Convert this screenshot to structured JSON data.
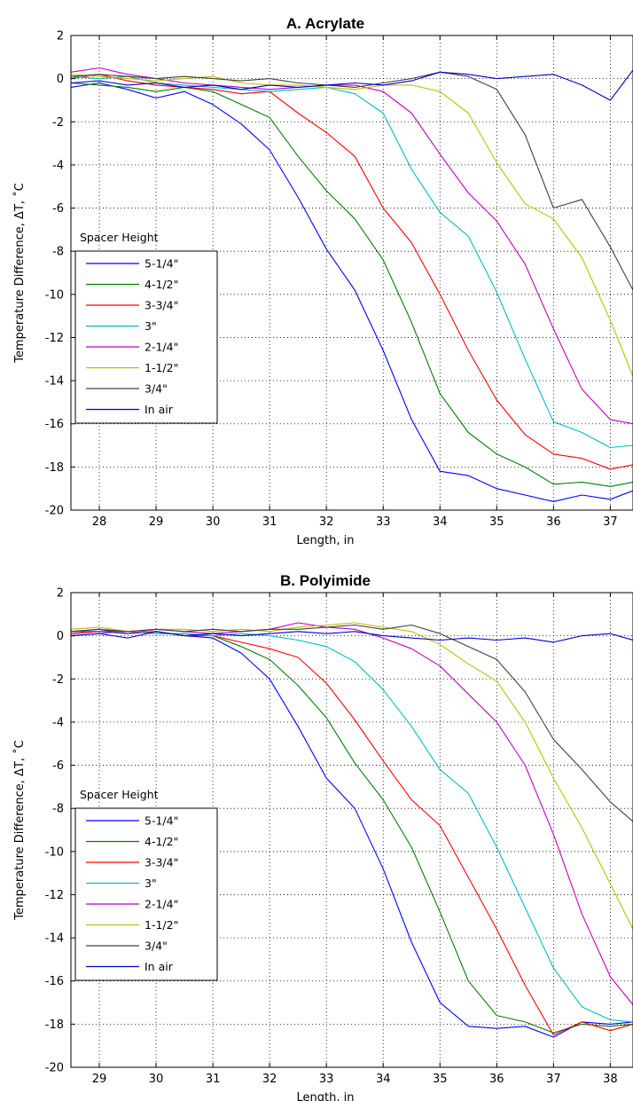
{
  "chart_data": [
    {
      "type": "line",
      "title": "A. Acrylate",
      "xlabel": "Length, in",
      "ylabel": "Temperature Difference, ΔT, ˚C",
      "xlim": [
        27.5,
        37.4
      ],
      "ylim": [
        -20,
        2
      ],
      "xticks": [
        28,
        29,
        30,
        31,
        32,
        33,
        34,
        35,
        36,
        37
      ],
      "yticks": [
        2,
        0,
        -2,
        -4,
        -6,
        -8,
        -10,
        -12,
        -14,
        -16,
        -18,
        -20
      ],
      "grid": true,
      "legend": {
        "title": "Spacer Height",
        "placement": "lower-left"
      },
      "series": [
        {
          "name": "5-1/4\"",
          "color": "#0000ff",
          "x": [
            27.5,
            28.0,
            28.5,
            29.0,
            29.5,
            30.0,
            30.5,
            31.0,
            31.5,
            32.0,
            32.5,
            33.0,
            33.5,
            34.0,
            34.5,
            35.0,
            35.5,
            36.0,
            36.5,
            37.0,
            37.4
          ],
          "y": [
            -0.4,
            -0.2,
            -0.5,
            -0.9,
            -0.6,
            -1.2,
            -2.1,
            -3.3,
            -5.5,
            -7.9,
            -9.8,
            -12.6,
            -15.8,
            -18.2,
            -18.4,
            -19.0,
            -19.3,
            -19.6,
            -19.3,
            -19.5,
            -19.1
          ]
        },
        {
          "name": "4-1/2\"",
          "color": "#008000",
          "x": [
            27.5,
            28.0,
            28.5,
            29.0,
            29.5,
            30.0,
            30.5,
            31.0,
            31.5,
            32.0,
            32.5,
            33.0,
            33.5,
            34.0,
            34.5,
            35.0,
            35.5,
            36.0,
            36.5,
            37.0,
            37.4
          ],
          "y": [
            -0.2,
            -0.3,
            -0.4,
            -0.6,
            -0.4,
            -0.6,
            -1.2,
            -1.8,
            -3.6,
            -5.2,
            -6.5,
            -8.4,
            -11.3,
            -14.6,
            -16.4,
            -17.4,
            -18.0,
            -18.8,
            -18.7,
            -18.9,
            -18.7
          ]
        },
        {
          "name": "3-3/4\"",
          "color": "#ff0000",
          "x": [
            27.5,
            28.0,
            28.5,
            29.0,
            29.5,
            30.0,
            30.5,
            31.0,
            31.5,
            32.0,
            32.5,
            33.0,
            33.5,
            34.0,
            34.5,
            35.0,
            35.5,
            36.0,
            36.5,
            37.0,
            37.4
          ],
          "y": [
            0.0,
            0.2,
            -0.1,
            -0.3,
            -0.4,
            -0.5,
            -0.7,
            -0.6,
            -1.6,
            -2.5,
            -3.6,
            -6.0,
            -7.6,
            -10.0,
            -12.6,
            -14.9,
            -16.5,
            -17.4,
            -17.6,
            -18.1,
            -17.9
          ]
        },
        {
          "name": "3\"",
          "color": "#00bfbf",
          "x": [
            27.5,
            28.0,
            28.5,
            29.0,
            29.5,
            30.0,
            30.5,
            31.0,
            31.5,
            32.0,
            32.5,
            33.0,
            33.5,
            34.0,
            34.5,
            35.0,
            35.5,
            36.0,
            36.5,
            37.0,
            37.4
          ],
          "y": [
            0.1,
            0.0,
            0.1,
            -0.2,
            -0.3,
            -0.4,
            -0.5,
            -0.6,
            -0.5,
            -0.4,
            -0.7,
            -1.6,
            -4.2,
            -6.2,
            -7.3,
            -9.9,
            -13.0,
            -15.9,
            -16.4,
            -17.1,
            -17.0
          ]
        },
        {
          "name": "2-1/4\"",
          "color": "#bf00bf",
          "x": [
            27.5,
            28.0,
            28.5,
            29.0,
            29.5,
            30.0,
            30.5,
            31.0,
            31.5,
            32.0,
            32.5,
            33.0,
            33.5,
            34.0,
            34.5,
            35.0,
            35.5,
            36.0,
            36.5,
            37.0,
            37.4
          ],
          "y": [
            0.3,
            0.5,
            0.2,
            0.0,
            -0.2,
            -0.3,
            -0.4,
            -0.5,
            -0.4,
            -0.3,
            -0.3,
            -0.6,
            -1.6,
            -3.5,
            -5.3,
            -6.6,
            -8.6,
            -11.6,
            -14.4,
            -15.8,
            -16.0
          ]
        },
        {
          "name": "1-1/2\"",
          "color": "#bfbf00",
          "x": [
            27.5,
            28.0,
            28.5,
            29.0,
            29.5,
            30.0,
            30.5,
            31.0,
            31.5,
            32.0,
            32.5,
            33.0,
            33.5,
            34.0,
            34.5,
            35.0,
            35.5,
            36.0,
            36.5,
            37.0,
            37.4
          ],
          "y": [
            0.2,
            0.1,
            0.0,
            -0.1,
            0.0,
            0.1,
            -0.2,
            -0.3,
            -0.3,
            -0.4,
            -0.5,
            -0.3,
            -0.3,
            -0.6,
            -1.6,
            -3.9,
            -5.8,
            -6.5,
            -8.3,
            -11.2,
            -13.8
          ]
        },
        {
          "name": "3/4\"",
          "color": "#404040",
          "x": [
            27.5,
            28.0,
            28.5,
            29.0,
            29.5,
            30.0,
            30.5,
            31.0,
            31.5,
            32.0,
            32.5,
            33.0,
            33.5,
            34.0,
            34.5,
            35.0,
            35.5,
            36.0,
            36.5,
            37.0,
            37.4
          ],
          "y": [
            0.1,
            0.2,
            0.1,
            0.0,
            0.1,
            0.0,
            -0.1,
            0.0,
            -0.2,
            -0.3,
            -0.4,
            -0.2,
            0.0,
            0.3,
            0.1,
            -0.5,
            -2.6,
            -6.0,
            -5.6,
            -7.8,
            -9.8
          ]
        },
        {
          "name": "In air",
          "color": "#0000cc",
          "x": [
            27.5,
            28.0,
            28.5,
            29.0,
            29.5,
            30.0,
            30.5,
            31.0,
            31.5,
            32.0,
            32.5,
            33.0,
            33.5,
            34.0,
            34.5,
            35.0,
            35.5,
            36.0,
            36.5,
            37.0,
            37.4
          ],
          "y": [
            -0.2,
            -0.1,
            -0.3,
            -0.2,
            -0.4,
            -0.3,
            -0.5,
            -0.3,
            -0.4,
            -0.3,
            -0.2,
            -0.3,
            -0.1,
            0.3,
            0.2,
            0.0,
            0.1,
            0.2,
            -0.3,
            -1.0,
            0.4
          ]
        }
      ]
    },
    {
      "type": "line",
      "title": "B. Polyimide",
      "xlabel": "Length, in",
      "ylabel": "Temperature Difference, ΔT, ˚C",
      "xlim": [
        28.5,
        38.4
      ],
      "ylim": [
        -20,
        2
      ],
      "xticks": [
        29,
        30,
        31,
        32,
        33,
        34,
        35,
        36,
        37,
        38
      ],
      "yticks": [
        2,
        0,
        -2,
        -4,
        -6,
        -8,
        -10,
        -12,
        -14,
        -16,
        -18,
        -20
      ],
      "grid": true,
      "legend": {
        "title": "Spacer Height",
        "placement": "lower-left"
      },
      "series": [
        {
          "name": "5-1/4\"",
          "color": "#0000ff",
          "x": [
            28.5,
            29.0,
            29.5,
            30.0,
            30.5,
            31.0,
            31.5,
            32.0,
            32.5,
            33.0,
            33.5,
            34.0,
            34.5,
            35.0,
            35.5,
            36.0,
            36.5,
            37.0,
            37.5,
            38.0,
            38.4
          ],
          "y": [
            0.2,
            0.3,
            0.1,
            0.2,
            0.0,
            -0.1,
            -0.8,
            -2.0,
            -4.2,
            -6.6,
            -8.0,
            -10.8,
            -14.2,
            -17.0,
            -18.1,
            -18.2,
            -18.1,
            -18.6,
            -17.9,
            -18.0,
            -17.9
          ]
        },
        {
          "name": "4-1/2\"",
          "color": "#008000",
          "x": [
            28.5,
            29.0,
            29.5,
            30.0,
            30.5,
            31.0,
            31.5,
            32.0,
            32.5,
            33.0,
            33.5,
            34.0,
            34.5,
            35.0,
            35.5,
            36.0,
            36.5,
            37.0,
            37.5,
            38.0,
            38.4
          ],
          "y": [
            0.1,
            0.2,
            0.2,
            0.1,
            0.1,
            0.0,
            -0.5,
            -1.1,
            -2.3,
            -3.8,
            -5.9,
            -7.6,
            -9.8,
            -12.8,
            -16.0,
            -17.6,
            -17.9,
            -18.4,
            -18.0,
            -18.1,
            -18.0
          ]
        },
        {
          "name": "3-3/4\"",
          "color": "#ff0000",
          "x": [
            28.5,
            29.0,
            29.5,
            30.0,
            30.5,
            31.0,
            31.5,
            32.0,
            32.5,
            33.0,
            33.5,
            34.0,
            34.5,
            35.0,
            35.5,
            36.0,
            36.5,
            37.0,
            37.5,
            38.0,
            38.4
          ],
          "y": [
            0.1,
            0.2,
            0.1,
            0.2,
            0.0,
            0.0,
            -0.3,
            -0.6,
            -1.0,
            -2.2,
            -3.9,
            -5.8,
            -7.6,
            -8.8,
            -11.2,
            -13.6,
            -16.2,
            -18.5,
            -17.9,
            -18.3,
            -18.0
          ]
        },
        {
          "name": "3\"",
          "color": "#00bfbf",
          "x": [
            28.5,
            29.0,
            29.5,
            30.0,
            30.5,
            31.0,
            31.5,
            32.0,
            32.5,
            33.0,
            33.5,
            34.0,
            34.5,
            35.0,
            35.5,
            36.0,
            36.5,
            37.0,
            37.5,
            38.0,
            38.4
          ],
          "y": [
            0.0,
            0.1,
            0.2,
            0.1,
            0.1,
            0.0,
            0.1,
            0.0,
            -0.2,
            -0.5,
            -1.2,
            -2.5,
            -4.2,
            -6.2,
            -7.3,
            -9.8,
            -12.6,
            -15.4,
            -17.2,
            -17.8,
            -17.9
          ]
        },
        {
          "name": "2-1/4\"",
          "color": "#bf00bf",
          "x": [
            28.5,
            29.0,
            29.5,
            30.0,
            30.5,
            31.0,
            31.5,
            32.0,
            32.5,
            33.0,
            33.5,
            34.0,
            34.5,
            35.0,
            35.5,
            36.0,
            36.5,
            37.0,
            37.5,
            38.0,
            38.4
          ],
          "y": [
            0.2,
            0.2,
            0.1,
            0.3,
            0.2,
            0.1,
            0.2,
            0.3,
            0.6,
            0.4,
            0.3,
            -0.1,
            -0.6,
            -1.4,
            -2.7,
            -4.0,
            -6.0,
            -9.2,
            -12.9,
            -15.8,
            -17.1
          ]
        },
        {
          "name": "1-1/2\"",
          "color": "#bfbf00",
          "x": [
            28.5,
            29.0,
            29.5,
            30.0,
            30.5,
            31.0,
            31.5,
            32.0,
            32.5,
            33.0,
            33.5,
            34.0,
            34.5,
            35.0,
            35.5,
            36.0,
            36.5,
            37.0,
            37.5,
            38.0,
            38.4
          ],
          "y": [
            0.3,
            0.4,
            0.2,
            0.3,
            0.3,
            0.2,
            0.3,
            0.2,
            0.4,
            0.5,
            0.6,
            0.4,
            0.2,
            -0.4,
            -1.3,
            -2.1,
            -4.0,
            -6.6,
            -8.9,
            -11.5,
            -13.6
          ]
        },
        {
          "name": "3/4\"",
          "color": "#404040",
          "x": [
            28.5,
            29.0,
            29.5,
            30.0,
            30.5,
            31.0,
            31.5,
            32.0,
            32.5,
            33.0,
            33.5,
            34.0,
            34.5,
            35.0,
            35.5,
            36.0,
            36.5,
            37.0,
            37.5,
            38.0,
            38.4
          ],
          "y": [
            0.2,
            0.3,
            0.2,
            0.3,
            0.2,
            0.3,
            0.2,
            0.3,
            0.3,
            0.4,
            0.5,
            0.3,
            0.5,
            0.1,
            -0.5,
            -1.1,
            -2.6,
            -4.8,
            -6.2,
            -7.7,
            -8.6
          ]
        },
        {
          "name": "In air",
          "color": "#0000cc",
          "x": [
            28.5,
            29.0,
            29.5,
            30.0,
            30.5,
            31.0,
            31.5,
            32.0,
            32.5,
            33.0,
            33.5,
            34.0,
            34.5,
            35.0,
            35.5,
            36.0,
            36.5,
            37.0,
            37.5,
            38.0,
            38.4
          ],
          "y": [
            0.0,
            0.1,
            -0.1,
            0.2,
            0.0,
            0.1,
            0.0,
            0.1,
            0.2,
            0.1,
            0.2,
            0.0,
            -0.1,
            -0.2,
            -0.1,
            -0.2,
            -0.1,
            -0.3,
            0.0,
            0.1,
            -0.2
          ]
        }
      ]
    }
  ]
}
